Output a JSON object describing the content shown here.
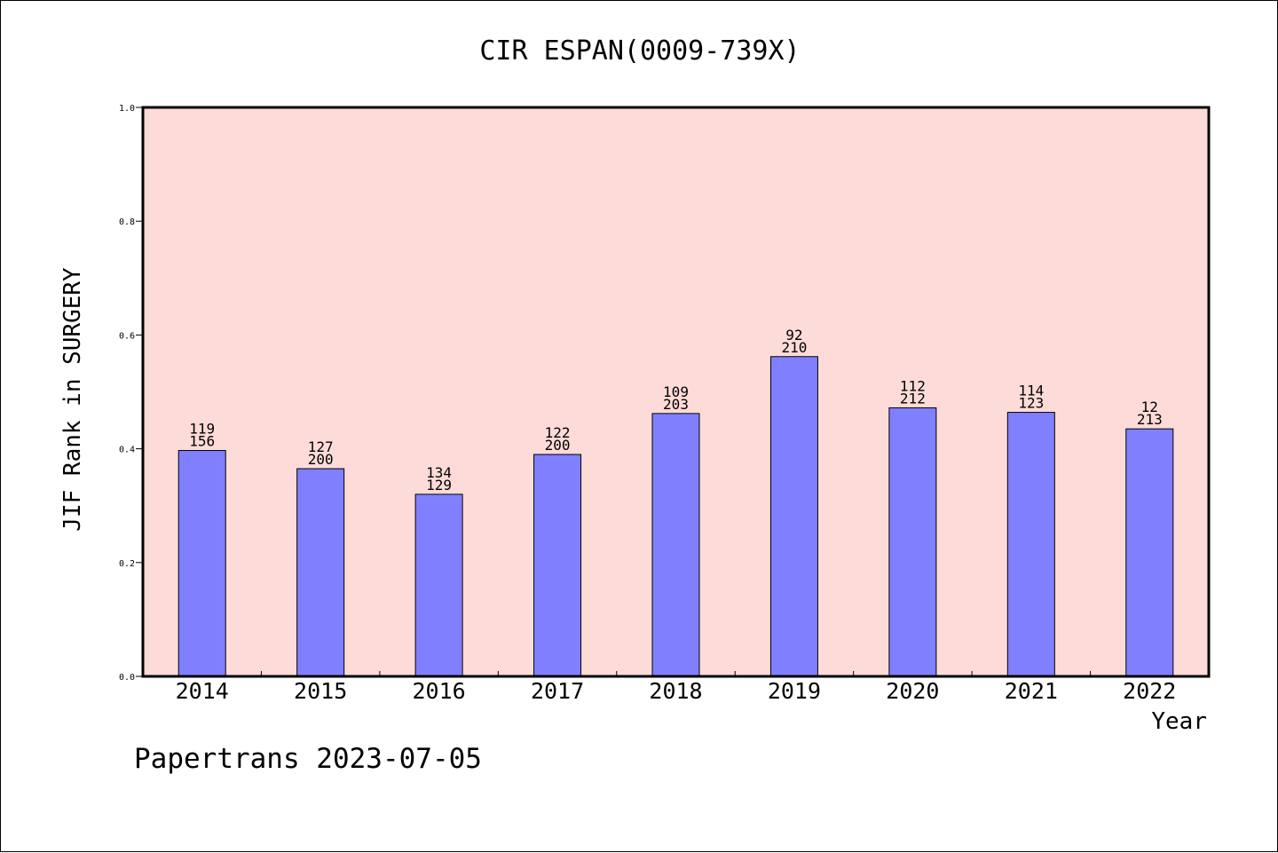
{
  "chart_data": {
    "type": "bar",
    "title": "CIR ESPAN(0009-739X)",
    "xlabel": "Year",
    "ylabel": "JIF Rank in SURGERY",
    "ylim": [
      0,
      1.0
    ],
    "yticks": [
      "0.0",
      "0.2",
      "0.4",
      "0.6",
      "0.8",
      "1.0"
    ],
    "grid": false,
    "categories": [
      "2014",
      "2015",
      "2016",
      "2017",
      "2018",
      "2019",
      "2020",
      "2021",
      "2022"
    ],
    "values": [
      0.397,
      0.365,
      0.32,
      0.39,
      0.462,
      0.562,
      0.472,
      0.464,
      0.435
    ],
    "labels_top": [
      "119",
      "127",
      "134",
      "122",
      "109",
      "92",
      "112",
      "114",
      "12"
    ],
    "labels_bottom": [
      "156",
      "200",
      "129",
      "200",
      "203",
      "210",
      "212",
      "123",
      "213"
    ],
    "colors": {
      "bar": "#8080ff",
      "plot_background": "#fddbd8",
      "axis": "#000000"
    }
  },
  "footer": {
    "credit": "Papertrans 2023-07-05"
  }
}
